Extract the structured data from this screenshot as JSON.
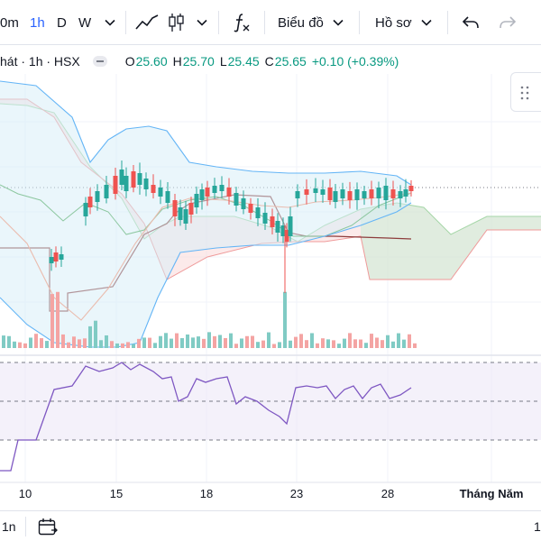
{
  "toolbar": {
    "timeframes": [
      {
        "label": "0m",
        "active": false
      },
      {
        "label": "1h",
        "active": true
      },
      {
        "label": "D",
        "active": false
      },
      {
        "label": "W",
        "active": false
      }
    ],
    "chart_menu_label": "Biểu đồ",
    "profile_menu_label": "Hồ sơ"
  },
  "legend": {
    "symbol": "hát · 1h · HSX",
    "open_label": "O",
    "open": "25.60",
    "high_label": "H",
    "high": "25.70",
    "low_label": "L",
    "low": "25.45",
    "close_label": "C",
    "close": "25.65",
    "change": "+0.10 (+0.39%)"
  },
  "x_axis": {
    "labels": [
      "10",
      "15",
      "18",
      "23",
      "28",
      "Tháng Năm"
    ]
  },
  "bottom": {
    "left_label": "1n",
    "right_label": "1"
  },
  "colors": {
    "up": "#26a69a",
    "down": "#ef5350",
    "rsi": "#7e57c2",
    "accent": "#2962ff"
  },
  "chart_data": {
    "type": "candlestick",
    "symbol": "hát · 1h · HSX",
    "ohlc_last": {
      "open": 25.6,
      "high": 25.7,
      "low": 25.45,
      "close": 25.65,
      "change": 0.1,
      "change_pct": 0.39
    },
    "x_ticks": [
      "10",
      "15",
      "18",
      "23",
      "28",
      "Tháng Năm"
    ],
    "indicators": [
      "Bollinger Bands",
      "Ichimoku Cloud",
      "Volume",
      "RSI"
    ],
    "grid": true
  }
}
